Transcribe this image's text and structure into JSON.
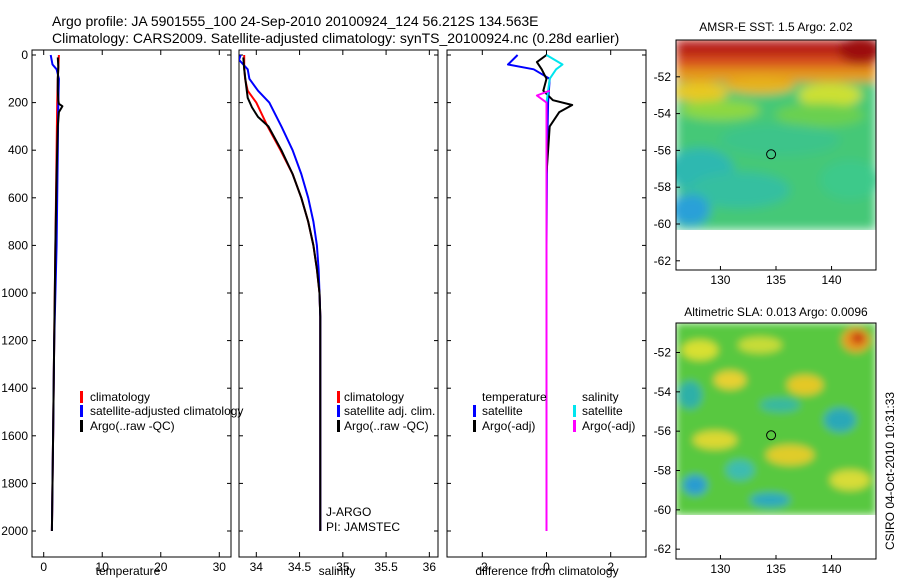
{
  "header": {
    "line1": "Argo profile: JA 5901555_100 24-Sep-2010 20100924_124 56.212S 134.563E",
    "line2": "Climatology: CARS2009. Satellite-adjusted climatology: synTS_20100924.nc (0.28d earlier)"
  },
  "footer": {
    "credit": "CSIRO 04-Oct-2010 10:31:33"
  },
  "colors": {
    "climatology": "#ff0000",
    "satellite": "#0000ff",
    "argo": "#000000",
    "satellite_salinity": "#00e5ee",
    "argo_salinity": "#ff00ff"
  },
  "chart_data": [
    {
      "type": "line",
      "panel": "temperature",
      "xlabel": "temperature",
      "ylabel": "",
      "xlim": [
        -2,
        32
      ],
      "ylim": [
        2050,
        0
      ],
      "xticks": [
        "0",
        "10",
        "20",
        "30"
      ],
      "yticks": [
        "0",
        "200",
        "400",
        "600",
        "800",
        "1000",
        "1200",
        "1400",
        "1600",
        "1800",
        "2000"
      ],
      "series": [
        {
          "name": "climatology",
          "color": "#ff0000",
          "x": [
            2.6,
            2.4,
            2.3,
            2.2,
            2.0,
            1.8,
            1.6,
            1.4
          ],
          "y": [
            0,
            100,
            200,
            400,
            800,
            1200,
            1600,
            2000
          ]
        },
        {
          "name": "satellite-adjusted climatology",
          "color": "#0000ff",
          "x": [
            1.2,
            1.5,
            2.2,
            2.6,
            2.5,
            2.4,
            2.2,
            2.0,
            1.8,
            1.6,
            1.4
          ],
          "y": [
            0,
            40,
            60,
            100,
            200,
            400,
            800,
            1000,
            1200,
            1600,
            2000
          ]
        },
        {
          "name": "Argo(..raw -QC)",
          "color": "#000000",
          "x": [
            2.4,
            2.5,
            2.4,
            2.4,
            2.5,
            2.6,
            3.2,
            2.6,
            2.4,
            2.2,
            2.0,
            1.8,
            1.6,
            1.4
          ],
          "y": [
            10,
            50,
            100,
            150,
            190,
            205,
            215,
            240,
            300,
            500,
            800,
            1200,
            1600,
            2000
          ]
        }
      ],
      "legend": {
        "placement": "lower-right",
        "entries": [
          "climatology",
          "satellite-adjusted climatology",
          "Argo(..raw -QC)"
        ]
      }
    },
    {
      "type": "line",
      "panel": "salinity",
      "xlabel": "salinity",
      "xlim": [
        33.8,
        36.1
      ],
      "ylim": [
        2050,
        0
      ],
      "xticks": [
        "34",
        "34.5",
        "35",
        "35.5",
        "36"
      ],
      "yticks": [],
      "series": [
        {
          "name": "climatology",
          "color": "#ff0000",
          "x": [
            33.86,
            33.86,
            33.87,
            33.9,
            34.0,
            34.13,
            34.28,
            34.42,
            34.52,
            34.6,
            34.66,
            34.7,
            34.73,
            34.74,
            34.74,
            34.74,
            34.74
          ],
          "y": [
            0,
            50,
            100,
            150,
            200,
            300,
            400,
            500,
            600,
            700,
            800,
            900,
            1000,
            1100,
            1200,
            1300,
            2000
          ]
        },
        {
          "name": "satellite adj. clim.",
          "color": "#0000ff",
          "x": [
            33.82,
            33.8,
            33.85,
            33.9,
            33.92,
            34.02,
            34.15,
            34.29,
            34.42,
            34.52,
            34.6,
            34.66,
            34.7,
            34.72,
            34.73,
            34.74,
            34.74,
            34.74,
            34.74
          ],
          "y": [
            0,
            20,
            40,
            60,
            100,
            150,
            200,
            300,
            400,
            500,
            600,
            700,
            800,
            900,
            1000,
            1100,
            1200,
            1400,
            2000
          ]
        },
        {
          "name": "Argo(..raw -QC)",
          "color": "#000000",
          "x": [
            33.85,
            33.86,
            33.88,
            33.9,
            33.95,
            34.02,
            34.14,
            34.29,
            34.42,
            34.52,
            34.6,
            34.66,
            34.7,
            34.73,
            34.74,
            34.74,
            34.74
          ],
          "y": [
            10,
            60,
            120,
            180,
            220,
            260,
            300,
            400,
            500,
            600,
            700,
            800,
            900,
            1000,
            1100,
            1300,
            2000
          ]
        }
      ],
      "legend": {
        "placement": "lower-right",
        "entries": [
          "climatology",
          "satellite adj. clim.",
          "Argo(..raw -QC)"
        ]
      },
      "annotations": [
        "J-ARGO",
        "PI: JAMSTEC"
      ]
    },
    {
      "type": "line",
      "panel": "difference",
      "xlabel": "difference from climatology",
      "xlim": [
        -3.1,
        3.1
      ],
      "ylim": [
        2050,
        0
      ],
      "xticks": [
        "-2",
        "0",
        "2"
      ],
      "yticks": [],
      "series": [
        {
          "name": "temperature satellite",
          "color": "#0000ff",
          "x": [
            -0.9,
            -1.2,
            -0.4,
            0.1,
            0.05,
            0.02,
            0.0,
            0.0
          ],
          "y": [
            0,
            40,
            60,
            100,
            200,
            400,
            800,
            2000
          ]
        },
        {
          "name": "temperature Argo(-adj)",
          "color": "#000000",
          "x": [
            0.0,
            -0.3,
            -0.15,
            0.0,
            -0.1,
            0.2,
            0.8,
            0.4,
            0.1,
            0.0,
            0.0,
            0.0
          ],
          "y": [
            0,
            30,
            60,
            100,
            150,
            190,
            210,
            240,
            300,
            500,
            800,
            2000
          ]
        },
        {
          "name": "salinity satellite",
          "color": "#00e5ee",
          "x": [
            0.0,
            0.5,
            0.3,
            0.1,
            0.0,
            0.0,
            0.0
          ],
          "y": [
            0,
            40,
            60,
            100,
            200,
            400,
            2000
          ]
        },
        {
          "name": "salinity Argo(-adj)",
          "color": "#ff00ff",
          "x": [
            0.1,
            -0.3,
            0.0,
            0.0,
            0.0
          ],
          "y": [
            150,
            170,
            200,
            400,
            2000
          ]
        }
      ],
      "legend": {
        "placement": "lower-right",
        "entries": [
          "temperature",
          "satellite",
          "Argo(-adj)",
          "salinity",
          "satellite",
          "Argo(-adj)"
        ]
      }
    },
    {
      "type": "heatmap",
      "panel": "sst-map",
      "title": "AMSR-E SST: 1.5 Argo: 2.02",
      "xlim": [
        126,
        144
      ],
      "ylim": [
        -62.5,
        -50
      ],
      "xticks": [
        "130",
        "135",
        "140"
      ],
      "yticks": [
        "-52",
        "-54",
        "-56",
        "-58",
        "-60",
        "-62"
      ],
      "marker": {
        "lon": 134.563,
        "lat": -56.212
      }
    },
    {
      "type": "heatmap",
      "panel": "sla-map",
      "title": "Altimetric SLA: 0.013 Argo: 0.0096",
      "xlim": [
        126,
        144
      ],
      "ylim": [
        -62.5,
        -50.5
      ],
      "xticks": [
        "130",
        "135",
        "140"
      ],
      "yticks": [
        "-52",
        "-54",
        "-56",
        "-58",
        "-60",
        "-62"
      ],
      "marker": {
        "lon": 134.563,
        "lat": -56.212
      }
    }
  ],
  "legends": {
    "temperature": {
      "clim": "climatology",
      "sat": "satellite-adjusted climatology",
      "argo": "Argo(..raw -QC)"
    },
    "salinity": {
      "clim": "climatology",
      "sat": "satellite adj. clim.",
      "argo": "Argo(..raw -QC)"
    },
    "difference": {
      "temp_head": "temperature",
      "temp_sat": "satellite",
      "temp_argo": "Argo(-adj)",
      "sal_head": "salinity",
      "sal_sat": "satellite",
      "sal_argo": "Argo(-adj)"
    }
  },
  "annotation": {
    "line1": "J-ARGO",
    "line2": "PI: JAMSTEC"
  }
}
